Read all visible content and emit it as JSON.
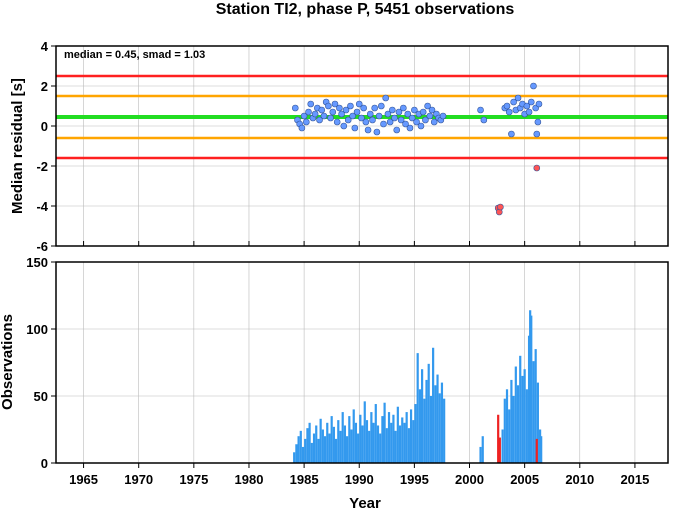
{
  "title": "Station TI2, phase P, 5451 observations",
  "chart_data": [
    {
      "type": "scatter",
      "annotation": "median = 0.45, smad = 1.03",
      "xlabel": "",
      "ylabel": "Median residual [s]",
      "xlim": [
        1962.5,
        2018
      ],
      "ylim": [
        -6,
        4
      ],
      "yticks": [
        -6,
        -4,
        -2,
        0,
        2,
        4
      ],
      "grid": true,
      "reference_lines": [
        {
          "y": 2.5,
          "color": "#ff2020"
        },
        {
          "y": 1.5,
          "color": "#ffa500"
        },
        {
          "y": 0.45,
          "color": "#22dd22"
        },
        {
          "y": -0.6,
          "color": "#ffa500"
        },
        {
          "y": -1.6,
          "color": "#ff2020"
        }
      ],
      "series": [
        {
          "color": "#6699ff",
          "points": [
            [
              1984.2,
              0.9
            ],
            [
              1984.4,
              0.3
            ],
            [
              1984.6,
              0.1
            ],
            [
              1984.8,
              -0.1
            ],
            [
              1985.0,
              0.5
            ],
            [
              1985.2,
              0.2
            ],
            [
              1985.4,
              0.7
            ],
            [
              1985.6,
              1.1
            ],
            [
              1985.8,
              0.4
            ],
            [
              1986.0,
              0.6
            ],
            [
              1986.2,
              0.9
            ],
            [
              1986.4,
              0.3
            ],
            [
              1986.6,
              0.8
            ],
            [
              1986.8,
              0.5
            ],
            [
              1987.0,
              1.2
            ],
            [
              1987.2,
              1.0
            ],
            [
              1987.4,
              0.4
            ],
            [
              1987.6,
              0.7
            ],
            [
              1987.8,
              1.1
            ],
            [
              1988.0,
              0.2
            ],
            [
              1988.2,
              0.9
            ],
            [
              1988.4,
              0.6
            ],
            [
              1988.6,
              0.0
            ],
            [
              1988.8,
              0.8
            ],
            [
              1989.0,
              0.3
            ],
            [
              1989.2,
              1.0
            ],
            [
              1989.4,
              0.5
            ],
            [
              1989.6,
              -0.1
            ],
            [
              1989.8,
              0.7
            ],
            [
              1990.0,
              1.1
            ],
            [
              1990.2,
              0.4
            ],
            [
              1990.4,
              0.9
            ],
            [
              1990.6,
              0.2
            ],
            [
              1990.8,
              -0.2
            ],
            [
              1991.0,
              0.6
            ],
            [
              1991.2,
              0.3
            ],
            [
              1991.4,
              0.9
            ],
            [
              1991.6,
              -0.3
            ],
            [
              1991.8,
              0.5
            ],
            [
              1992.0,
              1.0
            ],
            [
              1992.2,
              0.1
            ],
            [
              1992.4,
              1.4
            ],
            [
              1992.6,
              0.6
            ],
            [
              1992.8,
              0.2
            ],
            [
              1993.0,
              0.8
            ],
            [
              1993.2,
              0.4
            ],
            [
              1993.4,
              -0.2
            ],
            [
              1993.6,
              0.7
            ],
            [
              1993.8,
              0.3
            ],
            [
              1994.0,
              0.9
            ],
            [
              1994.2,
              0.1
            ],
            [
              1994.4,
              0.6
            ],
            [
              1994.6,
              -0.1
            ],
            [
              1994.8,
              0.4
            ],
            [
              1995.0,
              0.8
            ],
            [
              1995.2,
              0.2
            ],
            [
              1995.4,
              0.6
            ],
            [
              1995.6,
              0.0
            ],
            [
              1995.8,
              0.7
            ],
            [
              1996.0,
              0.3
            ],
            [
              1996.2,
              1.0
            ],
            [
              1996.4,
              0.5
            ],
            [
              1996.6,
              0.8
            ],
            [
              1996.8,
              0.2
            ],
            [
              1997.0,
              0.6
            ],
            [
              1997.2,
              0.4
            ],
            [
              1997.4,
              0.3
            ],
            [
              1997.6,
              0.5
            ],
            [
              2001.0,
              0.8
            ],
            [
              2001.3,
              0.3
            ],
            [
              2003.2,
              0.9
            ],
            [
              2003.4,
              1.0
            ],
            [
              2003.6,
              0.7
            ],
            [
              2003.8,
              -0.4
            ],
            [
              2004.0,
              1.2
            ],
            [
              2004.2,
              0.8
            ],
            [
              2004.4,
              1.4
            ],
            [
              2004.6,
              0.9
            ],
            [
              2004.8,
              1.1
            ],
            [
              2005.0,
              0.6
            ],
            [
              2005.2,
              1.0
            ],
            [
              2005.4,
              0.7
            ],
            [
              2005.6,
              1.2
            ],
            [
              2005.8,
              2.0
            ],
            [
              2006.0,
              0.9
            ],
            [
              2006.1,
              -0.4
            ],
            [
              2006.2,
              0.2
            ],
            [
              2006.3,
              1.1
            ]
          ]
        },
        {
          "color": "#ff5555",
          "points": [
            [
              2002.6,
              -4.1
            ],
            [
              2002.7,
              -4.3
            ],
            [
              2002.8,
              -4.05
            ],
            [
              2006.1,
              -2.1
            ]
          ]
        }
      ]
    },
    {
      "type": "bar",
      "xlabel": "Year",
      "ylabel": "Observations",
      "xlim": [
        1962.5,
        2018
      ],
      "ylim": [
        0,
        150
      ],
      "yticks": [
        0,
        50,
        100,
        150
      ],
      "xticks": [
        1965,
        1970,
        1975,
        1980,
        1985,
        1990,
        1995,
        2000,
        2005,
        2010,
        2015
      ],
      "grid": true,
      "series": [
        {
          "color": "#3399ee",
          "bars": [
            [
              1984.1,
              8
            ],
            [
              1984.3,
              14
            ],
            [
              1984.5,
              20
            ],
            [
              1984.7,
              24
            ],
            [
              1984.9,
              12
            ],
            [
              1985.1,
              18
            ],
            [
              1985.3,
              26
            ],
            [
              1985.5,
              30
            ],
            [
              1985.7,
              15
            ],
            [
              1985.9,
              22
            ],
            [
              1986.1,
              28
            ],
            [
              1986.3,
              18
            ],
            [
              1986.5,
              33
            ],
            [
              1986.7,
              25
            ],
            [
              1986.9,
              20
            ],
            [
              1987.1,
              30
            ],
            [
              1987.3,
              22
            ],
            [
              1987.5,
              35
            ],
            [
              1987.7,
              27
            ],
            [
              1987.9,
              18
            ],
            [
              1988.1,
              32
            ],
            [
              1988.3,
              24
            ],
            [
              1988.5,
              38
            ],
            [
              1988.7,
              28
            ],
            [
              1988.9,
              20
            ],
            [
              1989.1,
              35
            ],
            [
              1989.3,
              25
            ],
            [
              1989.5,
              40
            ],
            [
              1989.7,
              30
            ],
            [
              1989.9,
              22
            ],
            [
              1990.1,
              36
            ],
            [
              1990.3,
              28
            ],
            [
              1990.5,
              46
            ],
            [
              1990.7,
              32
            ],
            [
              1990.9,
              24
            ],
            [
              1991.1,
              38
            ],
            [
              1991.3,
              30
            ],
            [
              1991.5,
              44
            ],
            [
              1991.7,
              28
            ],
            [
              1991.9,
              22
            ],
            [
              1992.1,
              35
            ],
            [
              1992.3,
              45
            ],
            [
              1992.5,
              26
            ],
            [
              1992.7,
              38
            ],
            [
              1992.9,
              30
            ],
            [
              1993.1,
              36
            ],
            [
              1993.3,
              24
            ],
            [
              1993.5,
              42
            ],
            [
              1993.7,
              28
            ],
            [
              1993.9,
              34
            ],
            [
              1994.1,
              30
            ],
            [
              1994.3,
              38
            ],
            [
              1994.5,
              26
            ],
            [
              1994.7,
              40
            ],
            [
              1994.9,
              32
            ],
            [
              1995.1,
              44
            ],
            [
              1995.3,
              82
            ],
            [
              1995.5,
              55
            ],
            [
              1995.7,
              70
            ],
            [
              1995.9,
              48
            ],
            [
              1996.1,
              62
            ],
            [
              1996.3,
              74
            ],
            [
              1996.5,
              50
            ],
            [
              1996.7,
              86
            ],
            [
              1996.9,
              58
            ],
            [
              1997.1,
              66
            ],
            [
              1997.3,
              52
            ],
            [
              1997.5,
              60
            ],
            [
              1997.7,
              48
            ],
            [
              2001.0,
              12
            ],
            [
              2001.2,
              20
            ],
            [
              2003.0,
              25
            ],
            [
              2003.2,
              48
            ],
            [
              2003.4,
              55
            ],
            [
              2003.6,
              40
            ],
            [
              2003.8,
              62
            ],
            [
              2004.0,
              50
            ],
            [
              2004.2,
              72
            ],
            [
              2004.4,
              58
            ],
            [
              2004.6,
              80
            ],
            [
              2004.8,
              65
            ],
            [
              2005.0,
              70
            ],
            [
              2005.2,
              55
            ],
            [
              2005.4,
              95
            ],
            [
              2005.5,
              114
            ],
            [
              2005.6,
              110
            ],
            [
              2005.8,
              76
            ],
            [
              2006.0,
              85
            ],
            [
              2006.2,
              60
            ],
            [
              2006.4,
              25
            ],
            [
              2006.5,
              20
            ]
          ]
        },
        {
          "color": "#ee2222",
          "bars": [
            [
              2002.6,
              36
            ],
            [
              2002.75,
              19
            ],
            [
              2006.1,
              18
            ]
          ]
        }
      ]
    }
  ]
}
